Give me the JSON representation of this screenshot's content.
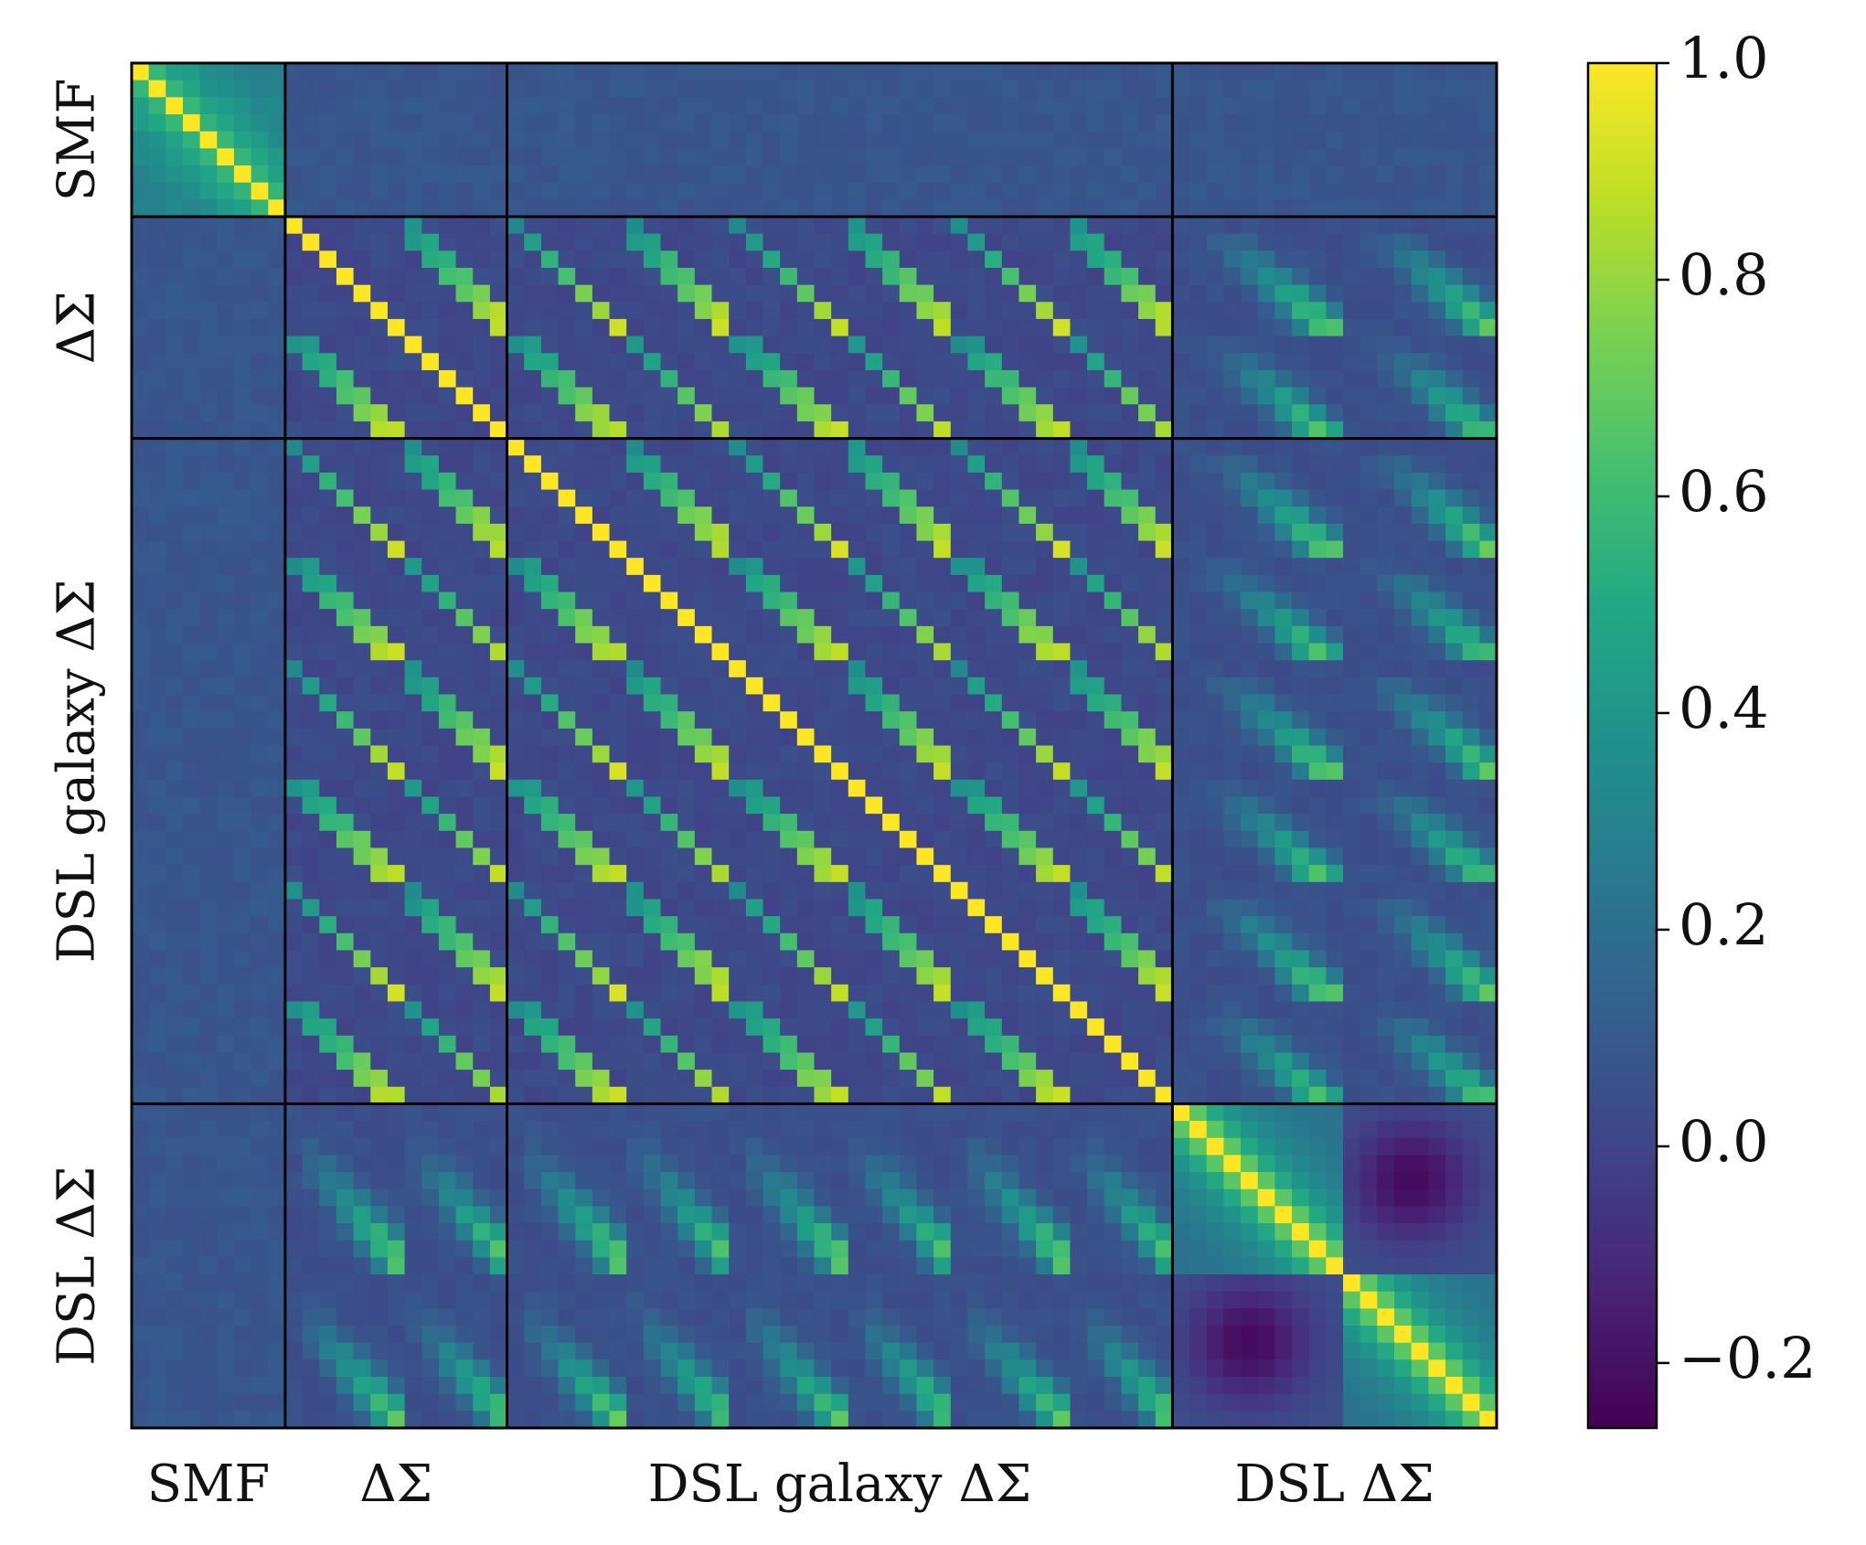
{
  "chart_data": {
    "type": "heatmap",
    "title": "",
    "subtitle": "",
    "colormap": "viridis",
    "colorbar": {
      "vmin": -0.26,
      "vmax": 1.0,
      "ticks": [
        {
          "value": 1.0,
          "label": "1.0"
        },
        {
          "value": 0.8,
          "label": "0.8"
        },
        {
          "value": 0.6,
          "label": "0.6"
        },
        {
          "value": 0.4,
          "label": "0.4"
        },
        {
          "value": 0.2,
          "label": "0.2"
        },
        {
          "value": 0.0,
          "label": "0.0"
        },
        {
          "value": -0.2,
          "label": "−0.2"
        }
      ]
    },
    "n_total": 80,
    "blocks": [
      {
        "name": "SMF",
        "label": "SMF",
        "size": 9,
        "kind": "smf",
        "subblocks": 1,
        "sub_size": 9
      },
      {
        "name": "DeltaSigma",
        "label": "ΔΣ",
        "size": 13,
        "kind": "lens",
        "subblocks": 2,
        "sub_size": 6.5
      },
      {
        "name": "DSL_galaxy_DeltaSigma",
        "label": "DSL galaxy ΔΣ",
        "size": 39,
        "kind": "lens",
        "subblocks": 6,
        "sub_size": 6.5
      },
      {
        "name": "DSL_DeltaSigma",
        "label": "DSL ΔΣ",
        "size": 19,
        "kind": "smooth",
        "subblocks": 2,
        "sub_size": 9.5
      }
    ],
    "description_values": {
      "diagonal": 1.0,
      "min_correlation": -0.26,
      "max_correlation": 1.0
    }
  }
}
